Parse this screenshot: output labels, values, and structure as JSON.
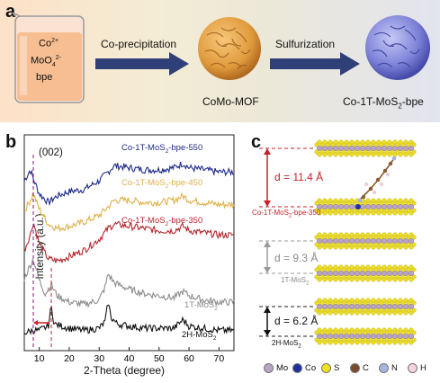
{
  "panel_a": {
    "letter": "a",
    "beaker_lines": [
      "Co2+",
      "MoO42-",
      "bpe"
    ],
    "beaker_line_1_main": "Co",
    "beaker_line_1_sup": "2+",
    "beaker_line_2_main": "MoO",
    "beaker_line_2_sub": "4",
    "beaker_line_2_sup": "2-",
    "beaker_line_3": "bpe",
    "step1": "Co-precipitation",
    "step2": "Sulfurization",
    "mof_label": "CoMo-MOF",
    "product_label_main": "Co-1T-MoS",
    "product_label_sub": "2",
    "product_label_end": "-bpe",
    "colors": {
      "solution": "#f6b98b",
      "mof": "#e8a54a",
      "sulfide": "#7f82d6",
      "arrow": "#2f3f77"
    }
  },
  "panel_b": {
    "letter": "b",
    "peak_label": "(002)",
    "ylabel": "Intensity (a.u.)",
    "xlabel": "2-Theta (degree)",
    "xticks": [
      "10",
      "20",
      "30",
      "40",
      "50",
      "60",
      "70"
    ]
  },
  "chart_data": {
    "type": "line",
    "xlabel": "2-Theta (degree)",
    "ylabel": "Intensity (a.u.)",
    "xlim": [
      5,
      75
    ],
    "yticks_shown": false,
    "annotations": [
      "(002)"
    ],
    "series": [
      {
        "name": "Co-1T-MoS2-bpe-550",
        "label_main": "Co-1T-MoS",
        "label_sub": "2",
        "label_end": "-bpe-550",
        "color": "#1e2a8a",
        "x": [
          5,
          7,
          8,
          10,
          13,
          16,
          20,
          25,
          30,
          33,
          35,
          40,
          45,
          50,
          55,
          58,
          60,
          65,
          70,
          75
        ],
        "y": [
          7.5,
          8.0,
          7.6,
          6.9,
          6.5,
          6.8,
          7.0,
          7.1,
          7.5,
          7.9,
          8.2,
          8.1,
          8.0,
          8.0,
          8.1,
          8.3,
          8.1,
          8.0,
          7.9,
          7.9
        ]
      },
      {
        "name": "Co-1T-MoS2-bpe-450",
        "label_main": "Co-1T-MoS",
        "label_sub": "2",
        "label_end": "-bpe-450",
        "color": "#e0b04a",
        "x": [
          5,
          7,
          8,
          10,
          13,
          16,
          20,
          25,
          30,
          33,
          35,
          40,
          45,
          50,
          55,
          58,
          60,
          65,
          70,
          75
        ],
        "y": [
          6.1,
          6.6,
          6.9,
          6.2,
          5.5,
          5.3,
          5.4,
          5.6,
          5.9,
          6.3,
          6.6,
          6.6,
          6.5,
          6.5,
          6.6,
          6.8,
          6.6,
          6.5,
          6.4,
          6.4
        ]
      },
      {
        "name": "Co-1T-MoS2-bpe-350",
        "label_main": "Co-1T-MoS",
        "label_sub": "2",
        "label_end": "-bpe-350",
        "color": "#b3262c",
        "x": [
          5,
          7,
          8,
          10,
          13,
          16,
          20,
          25,
          30,
          33,
          35,
          40,
          45,
          50,
          55,
          58,
          60,
          65,
          70,
          75
        ],
        "y": [
          4.3,
          5.0,
          5.6,
          4.6,
          3.9,
          3.8,
          4.0,
          4.3,
          4.8,
          5.3,
          5.5,
          5.4,
          5.3,
          5.2,
          5.2,
          5.4,
          5.2,
          5.1,
          5.0,
          5.0
        ]
      },
      {
        "name": "1T-MoS2",
        "label_main": "1T-MoS",
        "label_sub": "2",
        "label_end": "",
        "color": "#8c8c8c",
        "x": [
          5,
          7,
          8,
          10,
          12,
          14,
          16,
          20,
          25,
          30,
          32,
          33,
          35,
          40,
          45,
          50,
          55,
          58,
          60,
          65,
          70,
          75
        ],
        "y": [
          3.0,
          3.6,
          3.9,
          2.9,
          2.3,
          2.7,
          2.2,
          1.9,
          1.8,
          2.0,
          2.6,
          3.2,
          2.8,
          2.5,
          2.3,
          2.2,
          2.1,
          2.4,
          2.2,
          2.0,
          1.9,
          1.9
        ]
      },
      {
        "name": "2H-MoS2",
        "label_main": "2H-MoS",
        "label_sub": "2",
        "label_end": "",
        "color": "#111111",
        "x": [
          5,
          8,
          10,
          13,
          14,
          15,
          20,
          25,
          30,
          32,
          33,
          34,
          36,
          40,
          45,
          50,
          55,
          58,
          60,
          65,
          70,
          75
        ],
        "y": [
          0.5,
          0.6,
          0.6,
          0.8,
          1.7,
          0.9,
          0.7,
          0.6,
          0.7,
          1.0,
          1.9,
          1.2,
          0.9,
          0.8,
          0.7,
          0.7,
          0.7,
          1.1,
          0.8,
          0.7,
          0.6,
          0.6
        ]
      }
    ]
  },
  "panel_c": {
    "letter": "c",
    "structures": [
      {
        "name": "Co-1T-MoS2-bpe-350",
        "label_main": "Co-1T-MoS",
        "label_sub": "2",
        "label_end": "-bpe-350",
        "spacing": "d = 11.4 Å",
        "color": "#c8202a"
      },
      {
        "name": "1T-MoS2",
        "label_main": "1T-MoS",
        "label_sub": "2",
        "label_end": "",
        "spacing": "d = 9.3 Å",
        "color": "#9a9a9a"
      },
      {
        "name": "2H-MoS2",
        "label_main": "2H-MoS",
        "label_sub": "2",
        "label_end": "",
        "spacing": "d = 6.2 Å",
        "color": "#111111"
      }
    ],
    "legend": [
      {
        "label": "Mo",
        "color": "#b9a3c6"
      },
      {
        "label": "Co",
        "color": "#1f2fa0"
      },
      {
        "label": "S",
        "color": "#f0e020"
      },
      {
        "label": "C",
        "color": "#7a4a2a"
      },
      {
        "label": "N",
        "color": "#a8b4e0"
      },
      {
        "label": "H",
        "color": "#f4d4d8"
      }
    ]
  }
}
